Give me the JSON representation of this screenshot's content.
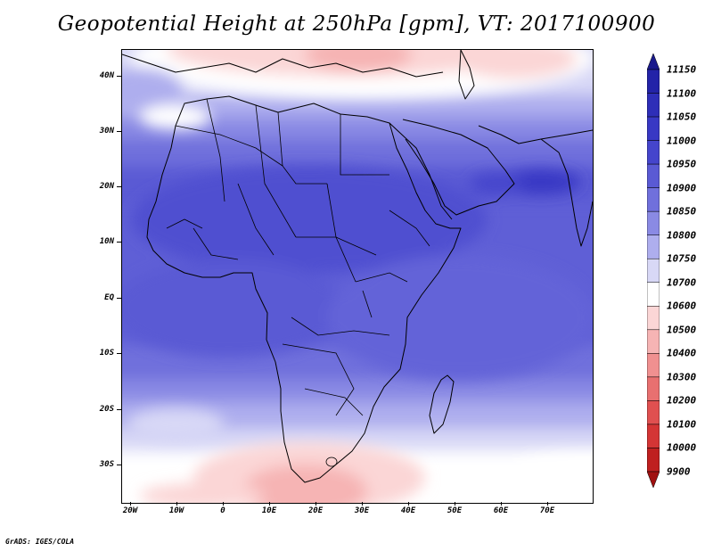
{
  "title": "Geopotential Height at 250hPa [gpm], VT: 2017100900",
  "credit": "GrADS: IGES/COLA",
  "lat_labels": [
    "40N",
    "30N",
    "20N",
    "10N",
    "EQ",
    "10S",
    "20S",
    "30S"
  ],
  "lon_labels": [
    "20W",
    "10W",
    "0",
    "10E",
    "20E",
    "30E",
    "40E",
    "50E",
    "60E",
    "70E"
  ],
  "legend": {
    "levels": [
      "11150",
      "11100",
      "11050",
      "11000",
      "10950",
      "10900",
      "10850",
      "10800",
      "10750",
      "10700",
      "10600",
      "10500",
      "10400",
      "10300",
      "10200",
      "10100",
      "10000",
      "9900"
    ],
    "colors": [
      "#1a1a8c",
      "#2323a8",
      "#2e2eb8",
      "#3838c4",
      "#4545cc",
      "#5a5ad4",
      "#7070dc",
      "#8a8ae4",
      "#aeaeee",
      "#d8d8f6",
      "#ffffff",
      "#fbd6d6",
      "#f6b4b4",
      "#f09090",
      "#e87070",
      "#e05050",
      "#d43535",
      "#bf2020",
      "#a01010"
    ]
  },
  "chart_data": {
    "type": "map-contour",
    "title": "Geopotential Height at 250hPa [gpm], VT: 2017100900",
    "variable": "Geopotential Height",
    "units": "gpm",
    "pressure_level": "250hPa",
    "valid_time": "2017100900",
    "lon_range": [
      "20W",
      "80E"
    ],
    "lat_range": [
      "37S",
      "45N"
    ],
    "contour_levels": [
      9900,
      10000,
      10100,
      10200,
      10300,
      10400,
      10500,
      10600,
      10700,
      10750,
      10800,
      10850,
      10900,
      10950,
      11000,
      11050,
      11100,
      11150
    ]
  }
}
